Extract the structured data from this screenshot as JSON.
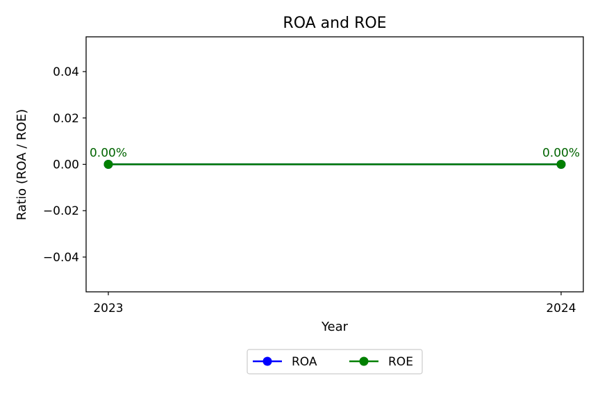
{
  "chart_data": {
    "type": "line",
    "title": "ROA and ROE",
    "xlabel": "Year",
    "ylabel": "Ratio (ROA / ROE)",
    "categories": [
      "2023",
      "2024"
    ],
    "ylim": [
      -0.055,
      0.055
    ],
    "yticks": [
      -0.04,
      -0.02,
      0.0,
      0.02,
      0.04
    ],
    "ytick_labels": [
      "−0.04",
      "−0.02",
      "0.00",
      "0.02",
      "0.04"
    ],
    "grid": false,
    "legend_position": "bottom-center",
    "series": [
      {
        "name": "ROA",
        "values": [
          0.0,
          0.0
        ],
        "color": "#0000ff",
        "marker": "circle",
        "data_labels": []
      },
      {
        "name": "ROE",
        "values": [
          0.0,
          0.0
        ],
        "color": "#008000",
        "marker": "circle",
        "data_labels": [
          "0.00%",
          "0.00%"
        ]
      }
    ],
    "label_color": "#006400"
  }
}
